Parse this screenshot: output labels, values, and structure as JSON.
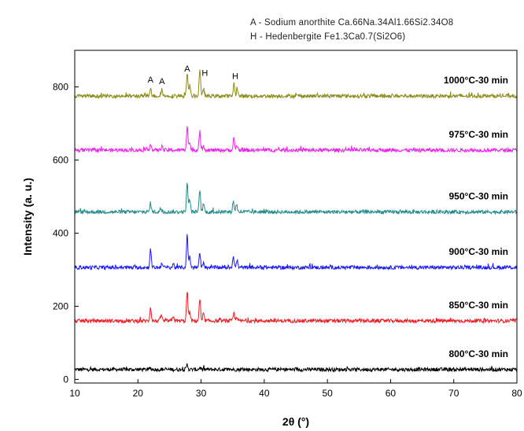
{
  "legend": {
    "line_a": "A - Sodium anorthite Ca.66Na.34Al1.66Si2.34O8",
    "line_h": "H - Hedenbergite Fe1.3Ca0.7(Si2O6)"
  },
  "chart_data": {
    "type": "line",
    "title": "",
    "xlabel": "2θ (°)",
    "ylabel": "Intensity (a. u.)",
    "xlim": [
      10,
      80
    ],
    "ylim": [
      -10,
      900
    ],
    "xticks": [
      10,
      20,
      30,
      40,
      50,
      60,
      70,
      80
    ],
    "yticks": [
      0,
      200,
      400,
      600,
      800
    ],
    "grid": false,
    "legend_position": "top-right",
    "series": [
      {
        "name": "800°C-30 min",
        "color": "#000000",
        "baseline": 27,
        "noise": 5,
        "peaks": [
          {
            "x": 27.8,
            "h": 14
          },
          {
            "x": 22.0,
            "h": 4
          },
          {
            "x": 29.8,
            "h": 5
          }
        ]
      },
      {
        "name": "850°C-30 min",
        "color": "#ee1c24",
        "baseline": 160,
        "noise": 5,
        "peaks": [
          {
            "x": 22.0,
            "h": 38
          },
          {
            "x": 23.7,
            "h": 18
          },
          {
            "x": 25.6,
            "h": 12
          },
          {
            "x": 27.8,
            "h": 80
          },
          {
            "x": 28.2,
            "h": 25
          },
          {
            "x": 29.8,
            "h": 58
          },
          {
            "x": 30.4,
            "h": 18
          },
          {
            "x": 35.2,
            "h": 22
          },
          {
            "x": 35.7,
            "h": 12
          }
        ]
      },
      {
        "name": "900°C-30 min",
        "color": "#1a1aff",
        "baseline": 306,
        "noise": 5,
        "peaks": [
          {
            "x": 22.0,
            "h": 50
          },
          {
            "x": 23.8,
            "h": 14
          },
          {
            "x": 25.6,
            "h": 10
          },
          {
            "x": 27.8,
            "h": 88
          },
          {
            "x": 28.2,
            "h": 30
          },
          {
            "x": 29.8,
            "h": 40
          },
          {
            "x": 30.4,
            "h": 16
          },
          {
            "x": 35.1,
            "h": 32
          },
          {
            "x": 35.7,
            "h": 20
          }
        ]
      },
      {
        "name": "950°C-30 min",
        "color": "#238a8a",
        "baseline": 458,
        "noise": 5,
        "peaks": [
          {
            "x": 22.0,
            "h": 25
          },
          {
            "x": 23.6,
            "h": 10
          },
          {
            "x": 27.8,
            "h": 80
          },
          {
            "x": 28.2,
            "h": 35
          },
          {
            "x": 29.8,
            "h": 60
          },
          {
            "x": 30.4,
            "h": 22
          },
          {
            "x": 35.1,
            "h": 30
          },
          {
            "x": 35.6,
            "h": 22
          }
        ]
      },
      {
        "name": "975°C-30 min",
        "color": "#ee22ee",
        "baseline": 627,
        "noise": 5,
        "peaks": [
          {
            "x": 22.0,
            "h": 20
          },
          {
            "x": 23.8,
            "h": 12
          },
          {
            "x": 27.8,
            "h": 68
          },
          {
            "x": 28.2,
            "h": 22
          },
          {
            "x": 29.8,
            "h": 50
          },
          {
            "x": 30.4,
            "h": 14
          },
          {
            "x": 35.2,
            "h": 30
          },
          {
            "x": 35.7,
            "h": 14
          }
        ]
      },
      {
        "name": "1000°C-30 min",
        "color": "#8c8a1a",
        "baseline": 775,
        "noise": 5,
        "peaks": [
          {
            "x": 22.0,
            "h": 25
          },
          {
            "x": 23.8,
            "h": 20
          },
          {
            "x": 27.8,
            "h": 62
          },
          {
            "x": 28.2,
            "h": 28
          },
          {
            "x": 29.8,
            "h": 75
          },
          {
            "x": 30.4,
            "h": 20
          },
          {
            "x": 35.2,
            "h": 34
          },
          {
            "x": 35.7,
            "h": 22
          }
        ]
      }
    ],
    "annotations": [
      {
        "text": "A",
        "x": 22.0,
        "y": 812
      },
      {
        "text": "A",
        "x": 23.8,
        "y": 808
      },
      {
        "text": "A",
        "x": 27.8,
        "y": 842
      },
      {
        "text": "H",
        "x": 30.6,
        "y": 830
      },
      {
        "text": "H",
        "x": 35.4,
        "y": 822
      }
    ]
  }
}
